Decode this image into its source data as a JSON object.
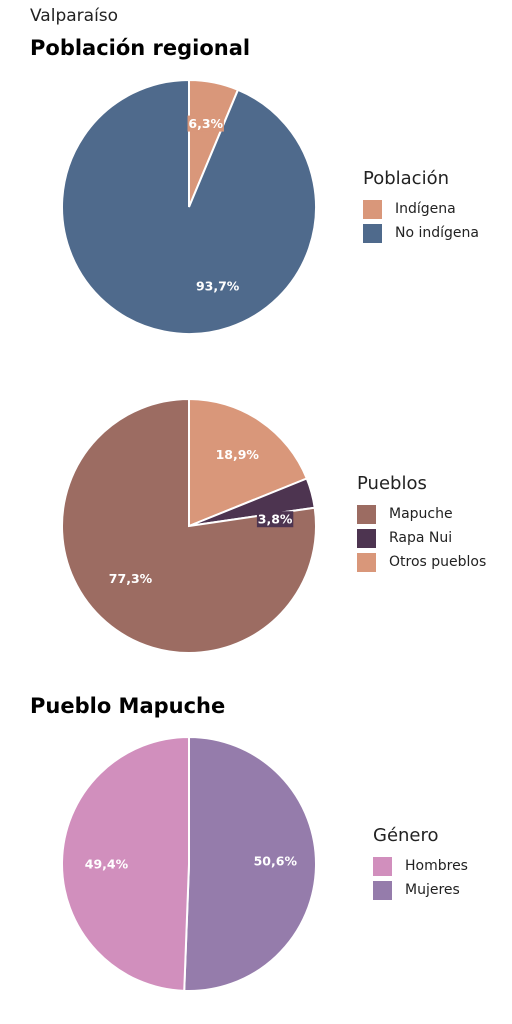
{
  "region": "Valparaíso",
  "titles": {
    "poblacion_regional": "Población regional",
    "pueblo_mapuche": "Pueblo Mapuche"
  },
  "chart_data": [
    {
      "type": "pie",
      "legend_title": "Población",
      "legend_position": "right",
      "series": [
        {
          "name": "Indígena",
          "value": 6.3,
          "label": "6,3%",
          "color": "#d9977a"
        },
        {
          "name": "No indígena",
          "value": 93.7,
          "label": "93,7%",
          "color": "#4f6a8c"
        }
      ]
    },
    {
      "type": "pie",
      "legend_title": "Pueblos",
      "legend_position": "right",
      "series": [
        {
          "name": "Mapuche",
          "value": 77.3,
          "label": "77,3%",
          "color": "#9c6c62"
        },
        {
          "name": "Rapa Nui",
          "value": 3.8,
          "label": "3,8%",
          "color": "#4d3450"
        },
        {
          "name": "Otros pueblos",
          "value": 18.9,
          "label": "18,9%",
          "color": "#d9977a"
        }
      ]
    },
    {
      "type": "pie",
      "legend_title": "Género",
      "legend_position": "right",
      "series": [
        {
          "name": "Hombres",
          "value": 49.4,
          "label": "49,4%",
          "color": "#d18fbd"
        },
        {
          "name": "Mujeres",
          "value": 50.6,
          "label": "50,6%",
          "color": "#957cab"
        }
      ]
    }
  ]
}
